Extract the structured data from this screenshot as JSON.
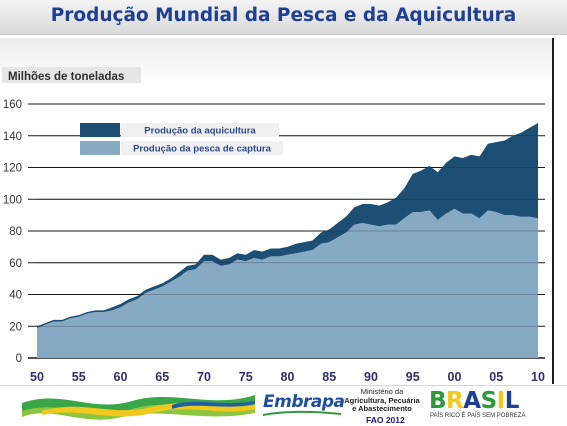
{
  "header": {
    "title": "Produção Mundial da Pesca e da Aquicultura"
  },
  "chart_data": {
    "type": "area",
    "title": "Produção Mundial da Pesca e da Aquicultura",
    "ylabel": "Milhões de toneladas",
    "xlabel": "",
    "ylim": [
      0,
      160
    ],
    "yticks": [
      0,
      20,
      40,
      60,
      80,
      100,
      120,
      140,
      160
    ],
    "xlim": [
      1950,
      2010
    ],
    "xtick_values": [
      1950,
      1955,
      1960,
      1965,
      1970,
      1975,
      1980,
      1985,
      1990,
      1995,
      2000,
      2005,
      2010
    ],
    "xtick_labels": [
      "50",
      "55",
      "60",
      "65",
      "70",
      "75",
      "80",
      "85",
      "90",
      "95",
      "00",
      "05",
      "10"
    ],
    "stacked": true,
    "legend_placement": "top-left",
    "x": [
      1950,
      1951,
      1952,
      1953,
      1954,
      1955,
      1956,
      1957,
      1958,
      1959,
      1960,
      1961,
      1962,
      1963,
      1964,
      1965,
      1966,
      1967,
      1968,
      1969,
      1970,
      1971,
      1972,
      1973,
      1974,
      1975,
      1976,
      1977,
      1978,
      1979,
      1980,
      1981,
      1982,
      1983,
      1984,
      1985,
      1986,
      1987,
      1988,
      1989,
      1990,
      1991,
      1992,
      1993,
      1994,
      1995,
      1996,
      1997,
      1998,
      1999,
      2000,
      2001,
      2002,
      2003,
      2004,
      2005,
      2006,
      2007,
      2008,
      2009,
      2010
    ],
    "series": [
      {
        "name": "Produção da pesca de captura",
        "color": "#87aac4",
        "values": [
          19,
          21,
          23,
          23,
          25,
          26,
          28,
          29,
          29,
          30,
          32,
          35,
          37,
          41,
          43,
          45,
          48,
          51,
          55,
          56,
          61,
          61,
          58,
          59,
          62,
          61,
          63,
          62,
          64,
          64,
          65,
          66,
          67,
          68,
          72,
          73,
          76,
          79,
          84,
          85,
          84,
          83,
          84,
          84,
          88,
          92,
          92,
          93,
          87,
          91,
          94,
          91,
          91,
          88,
          93,
          92,
          90,
          90,
          89,
          89,
          88
        ]
      },
      {
        "name": "Produção da aquicultura",
        "color": "#1c4f73",
        "values": [
          1,
          1,
          1,
          1,
          1,
          1,
          1,
          1,
          1,
          2,
          2,
          2,
          2,
          2,
          2,
          2,
          2,
          3,
          3,
          3,
          4,
          4,
          4,
          4,
          4,
          4,
          5,
          5,
          5,
          5,
          5,
          6,
          6,
          6,
          7,
          8,
          9,
          10,
          11,
          12,
          13,
          13,
          14,
          17,
          19,
          24,
          26,
          28,
          30,
          32,
          33,
          35,
          37,
          39,
          42,
          44,
          47,
          50,
          53,
          56,
          60
        ]
      }
    ],
    "grid": {
      "horizontal": true,
      "vertical": false
    }
  },
  "footer": {
    "embrapa_logo": "Embrapa",
    "ministry_line1": "Ministério da",
    "ministry_line2": "Agricultura, Pecuária",
    "ministry_line3": "e Abastecimento",
    "source": "FAO 2012",
    "brasil_logo": "BRASIL",
    "brasil_slogan": "PAÍS RICO É PAÍS SEM POBREZA",
    "brand_blue": "#1f3f95",
    "brand_green": "#2e9a3c",
    "brand_yellow": "#f2c81d"
  }
}
